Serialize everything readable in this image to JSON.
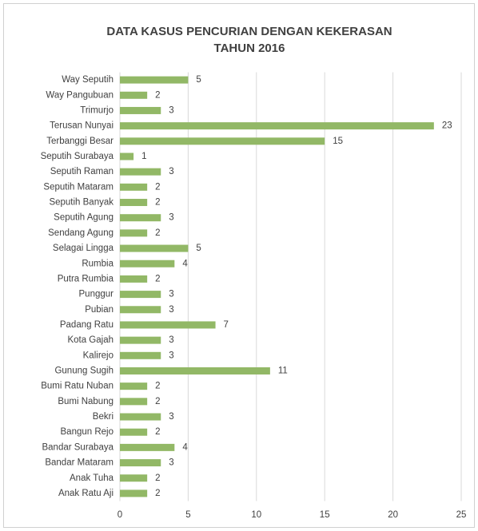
{
  "chart_data": {
    "type": "bar",
    "orientation": "horizontal",
    "title": [
      "DATA KASUS PENCURIAN DENGAN KEKERASAN",
      "TAHUN 2016"
    ],
    "categories": [
      "Way Seputih",
      "Way Pangubuan",
      "Trimurjo",
      "Terusan Nunyai",
      "Terbanggi Besar",
      "Seputih Surabaya",
      "Seputih Raman",
      "Seputih Mataram",
      "Seputih Banyak",
      "Seputih Agung",
      "Sendang Agung",
      "Selagai Lingga",
      "Rumbia",
      "Putra Rumbia",
      "Punggur",
      "Pubian",
      "Padang Ratu",
      "Kota Gajah",
      "Kalirejo",
      "Gunung Sugih",
      "Bumi Ratu Nuban",
      "Bumi Nabung",
      "Bekri",
      "Bangun Rejo",
      "Bandar Surabaya",
      "Bandar Mataram",
      "Anak Tuha",
      "Anak Ratu Aji"
    ],
    "values": [
      5,
      2,
      3,
      23,
      15,
      1,
      3,
      2,
      2,
      3,
      2,
      5,
      4,
      2,
      3,
      3,
      7,
      3,
      3,
      11,
      2,
      2,
      3,
      2,
      4,
      3,
      2,
      2
    ],
    "color": "#92b866",
    "xlim": [
      0,
      25
    ],
    "xticks": [
      0,
      5,
      10,
      15,
      20,
      25
    ],
    "grid": true
  }
}
